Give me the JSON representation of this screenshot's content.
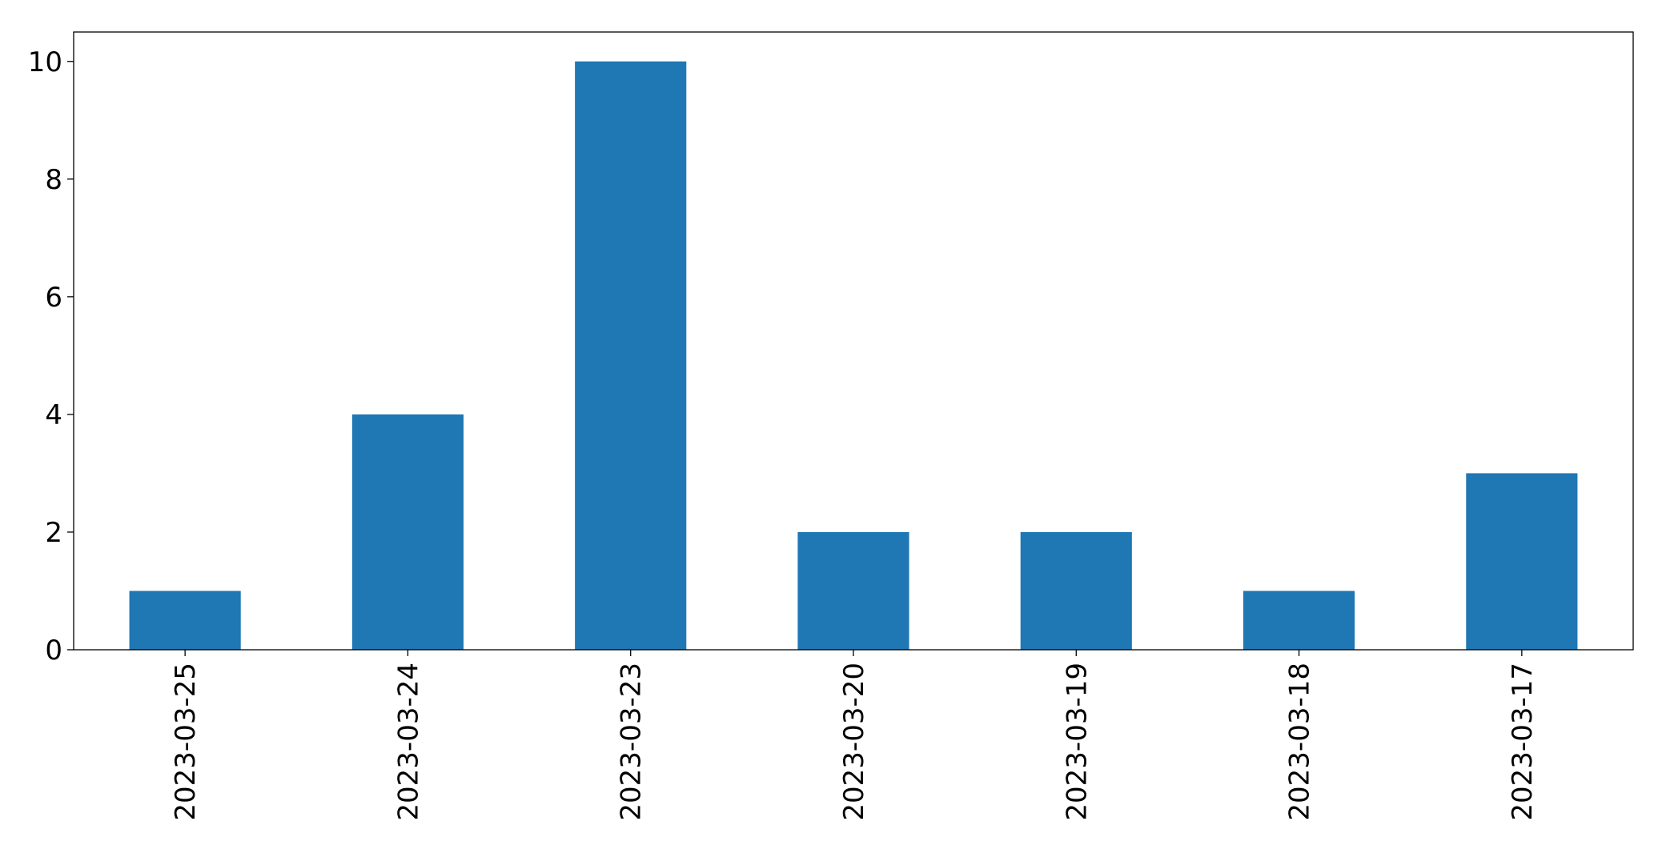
{
  "chart_data": {
    "type": "bar",
    "categories": [
      "2023-03-25",
      "2023-03-24",
      "2023-03-23",
      "2023-03-20",
      "2023-03-19",
      "2023-03-18",
      "2023-03-17"
    ],
    "values": [
      1,
      4,
      10,
      2,
      2,
      1,
      3
    ],
    "title": "",
    "xlabel": "",
    "ylabel": "",
    "ylim": [
      0,
      10.5
    ],
    "yticks": [
      "0",
      "2",
      "4",
      "6",
      "8",
      "10"
    ],
    "grid": false,
    "legend": "none",
    "colors": {
      "bar": "#1f77b4",
      "axis": "#000000",
      "background": "#ffffff"
    }
  }
}
